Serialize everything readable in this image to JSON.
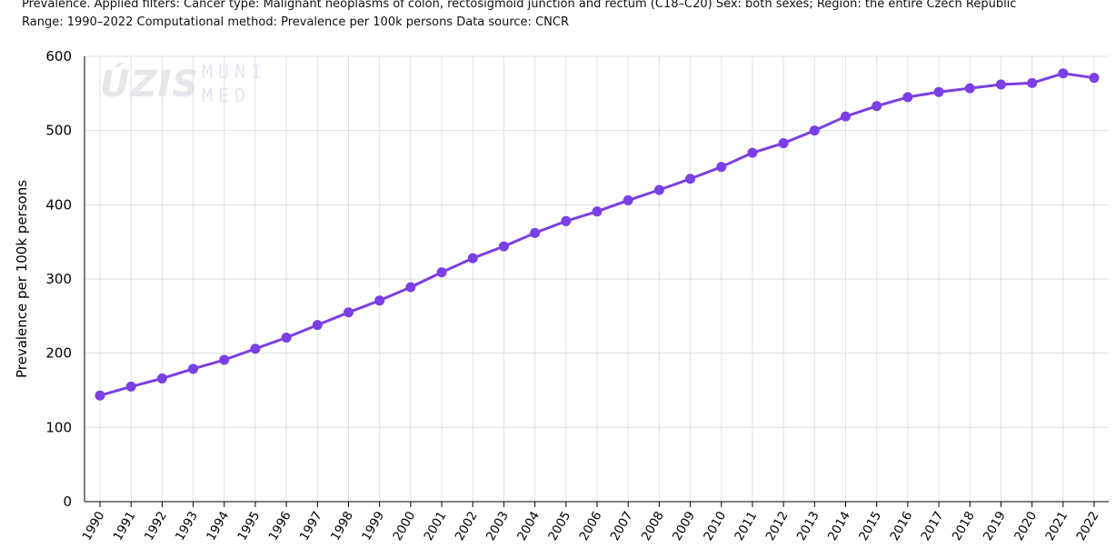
{
  "header": {
    "line1": "Prevalence. Applied filters: Cancer type: Malignant neoplasms of colon, rectosigmoid junction and rectum (C18–C20) Sex: both sexes; Region: the entire Czech Republic",
    "line2": "Range: 1990–2022 Computational method: Prevalence per 100k persons Data source: CNCR"
  },
  "watermark": {
    "uzis": "ÚZIS",
    "muni_line1": "MUNI",
    "muni_line2": "MED"
  },
  "colors": {
    "series": "#7b3fe4",
    "grid": "#e0e0e0",
    "axis": "#000000"
  },
  "chart_data": {
    "type": "line",
    "title": "",
    "xlabel": "",
    "ylabel": "Prevalence per 100k persons",
    "ylim": [
      0,
      600
    ],
    "yticks": [
      0,
      100,
      200,
      300,
      400,
      500,
      600
    ],
    "grid": true,
    "categories": [
      "1990",
      "1991",
      "1992",
      "1993",
      "1994",
      "1995",
      "1996",
      "1997",
      "1998",
      "1999",
      "2000",
      "2001",
      "2002",
      "2003",
      "2004",
      "2005",
      "2006",
      "2007",
      "2008",
      "2009",
      "2010",
      "2011",
      "2012",
      "2013",
      "2014",
      "2015",
      "2016",
      "2017",
      "2018",
      "2019",
      "2020",
      "2021",
      "2022"
    ],
    "series": [
      {
        "name": "Prevalence per 100k persons",
        "values": [
          143,
          155,
          166,
          179,
          191,
          206,
          221,
          238,
          255,
          271,
          289,
          309,
          328,
          344,
          362,
          378,
          391,
          406,
          420,
          435,
          451,
          470,
          483,
          500,
          519,
          533,
          545,
          552,
          557,
          562,
          564,
          577,
          571
        ]
      }
    ]
  }
}
